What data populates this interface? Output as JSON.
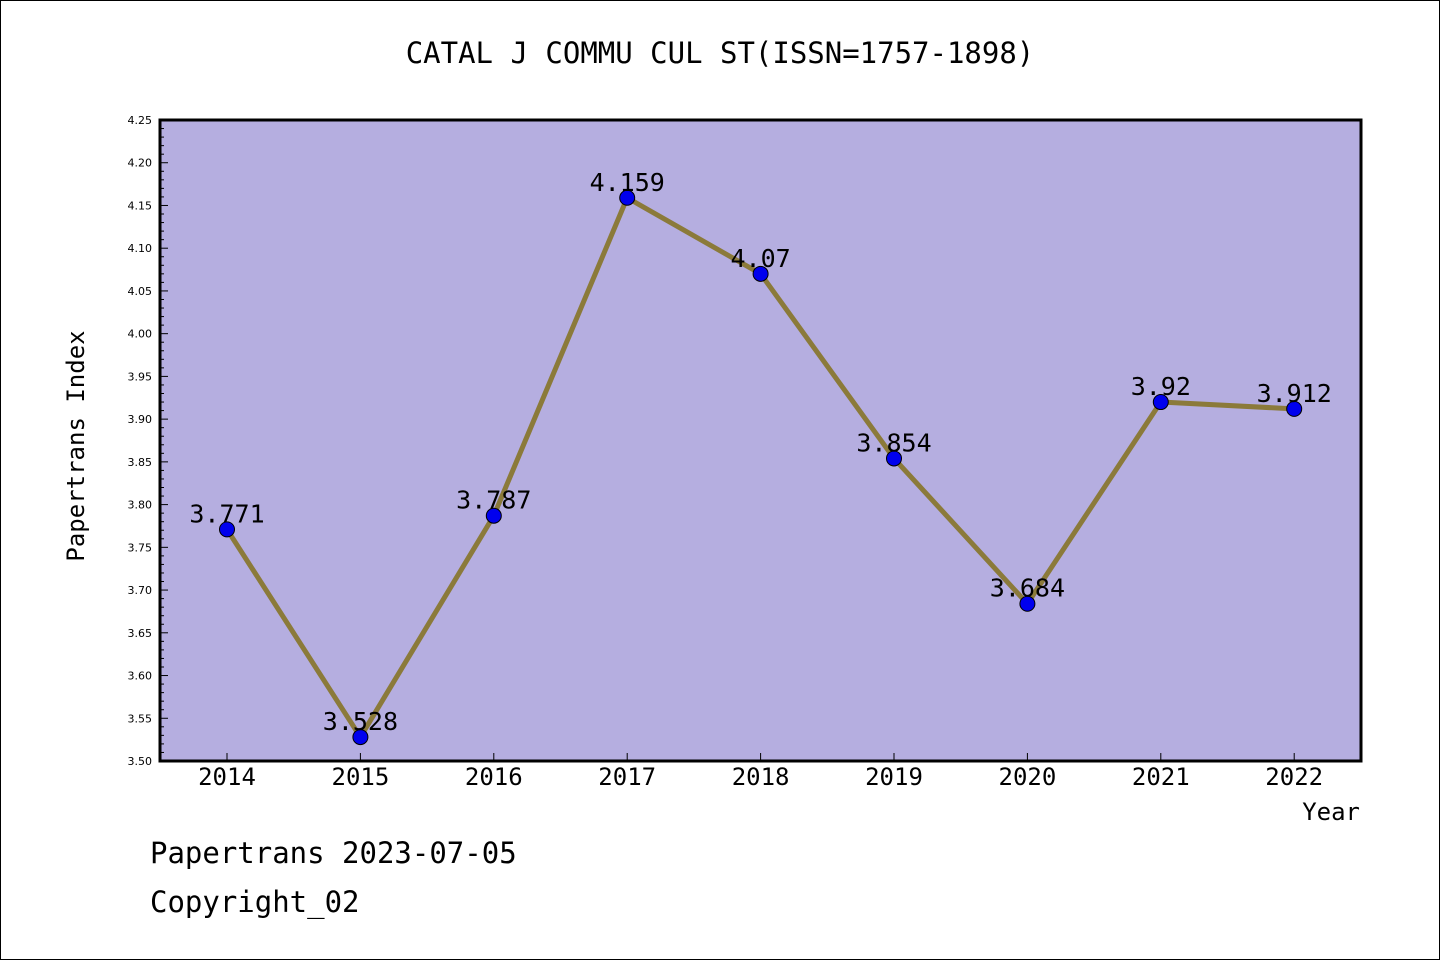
{
  "chart_data": {
    "type": "line",
    "title": "CATAL J COMMU CUL ST(ISSN=1757-1898)",
    "xlabel": "Year",
    "ylabel": "Papertrans Index",
    "categories": [
      "2014",
      "2015",
      "2016",
      "2017",
      "2018",
      "2019",
      "2020",
      "2021",
      "2022"
    ],
    "series": [
      {
        "values": [
          3.771,
          3.528,
          3.787,
          4.159,
          4.07,
          3.854,
          3.684,
          3.92,
          3.912
        ]
      }
    ],
    "data_labels": [
      "3.771",
      "3.528",
      "3.787",
      "4.159",
      "4.07",
      "3.854",
      "3.684",
      "3.92",
      "3.912"
    ],
    "ylim": [
      3.5,
      4.25
    ],
    "yticks": [
      "3.50",
      "3.55",
      "3.60",
      "3.65",
      "3.70",
      "3.75",
      "3.80",
      "3.85",
      "3.90",
      "3.95",
      "4.00",
      "4.05",
      "4.10",
      "4.15",
      "4.20",
      "4.25"
    ],
    "grid": false,
    "legend": "none",
    "colors": {
      "plot_background": "#b5aee0",
      "line": "#8b7a3a",
      "marker": "#0000ee",
      "axis": "#000000"
    }
  },
  "footer": {
    "line1": "Papertrans 2023-07-05",
    "line2": "Copyright_02"
  }
}
